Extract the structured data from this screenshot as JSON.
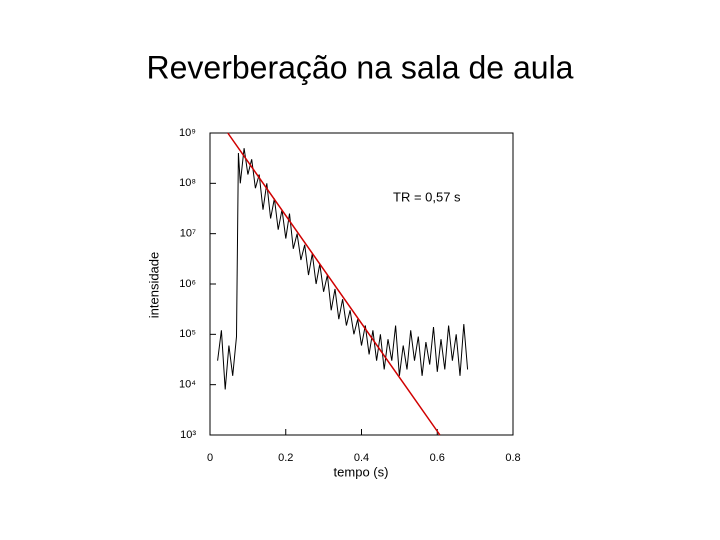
{
  "chart_data": {
    "type": "line",
    "title": "Reverberação na sala de aula",
    "xlabel": "tempo (s)",
    "ylabel": "intensidade",
    "annotation": "TR = 0,57 s",
    "log_y": true,
    "xlim": [
      0,
      0.8
    ],
    "xticks": [
      0,
      0.2,
      0.4,
      0.6,
      0.8
    ],
    "ylim": [
      1000,
      1000000000
    ],
    "yticks": [
      {
        "value": 1000,
        "label": "10³"
      },
      {
        "value": 10000,
        "label": "10⁴"
      },
      {
        "value": 100000,
        "label": "10⁵"
      },
      {
        "value": 1000000,
        "label": "10⁶"
      },
      {
        "value": 10000000,
        "label": "10⁷"
      },
      {
        "value": 100000000,
        "label": "10⁸"
      },
      {
        "value": 1000000000,
        "label": "10⁹"
      }
    ],
    "series": [
      {
        "color": "#000000",
        "x": [
          0.02,
          0.03,
          0.04,
          0.05,
          0.06,
          0.07,
          0.075,
          0.08,
          0.09,
          0.1,
          0.11,
          0.12,
          0.13,
          0.14,
          0.15,
          0.16,
          0.17,
          0.18,
          0.19,
          0.2,
          0.21,
          0.22,
          0.23,
          0.24,
          0.25,
          0.26,
          0.27,
          0.28,
          0.29,
          0.3,
          0.31,
          0.32,
          0.33,
          0.34,
          0.35,
          0.36,
          0.37,
          0.38,
          0.39,
          0.4,
          0.41,
          0.42,
          0.43,
          0.44,
          0.45,
          0.46,
          0.47,
          0.48,
          0.49,
          0.5,
          0.51,
          0.52,
          0.53,
          0.54,
          0.55,
          0.56,
          0.57,
          0.58,
          0.59,
          0.6,
          0.61,
          0.62,
          0.63,
          0.64,
          0.65,
          0.66,
          0.67,
          0.68
        ],
        "values": [
          30000,
          120000,
          8000,
          60000,
          15000,
          90000,
          400000000,
          100000000,
          500000000,
          150000000,
          300000000,
          80000000,
          150000000,
          30000000,
          100000000,
          20000000,
          50000000,
          12000000,
          30000000,
          8000000,
          25000000,
          5000000,
          10000000,
          3000000,
          6000000,
          1500000,
          4000000,
          1000000,
          2500000,
          700000,
          1500000,
          300000,
          800000,
          200000,
          500000,
          150000,
          300000,
          100000,
          200000,
          60000,
          150000,
          40000,
          120000,
          30000,
          100000,
          20000,
          80000,
          30000,
          150000,
          15000,
          60000,
          20000,
          120000,
          30000,
          90000,
          15000,
          70000,
          25000,
          140000,
          18000,
          80000,
          20000,
          150000,
          30000,
          100000,
          15000,
          160000,
          20000
        ]
      },
      {
        "color": "#d00000",
        "x": [
          0.047,
          0.607
        ],
        "values": [
          1000000000,
          1000
        ]
      }
    ]
  }
}
